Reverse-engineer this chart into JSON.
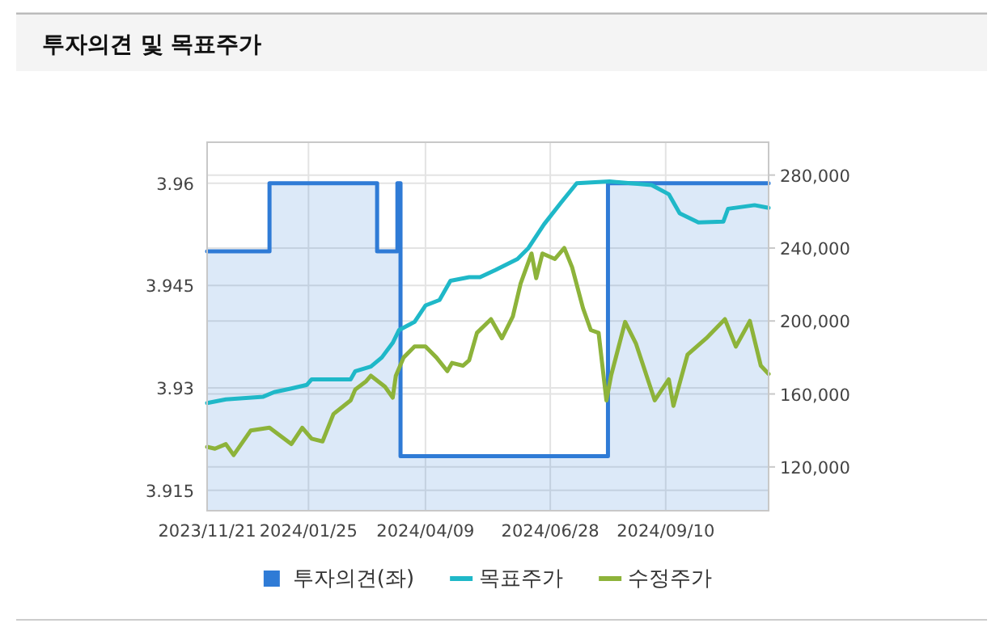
{
  "chart_data": {
    "type": "line",
    "title": "투자의견 및 목표주가",
    "xlim": [
      "2023-11-21",
      "2024-11-15"
    ],
    "xticks": [
      {
        "value": "2023-11-21",
        "label": "2023/11/21"
      },
      {
        "value": "2024-01-25",
        "label": "2024/01/25"
      },
      {
        "value": "2024-04-09",
        "label": "2024/04/09"
      },
      {
        "value": "2024-06-28",
        "label": "2024/06/28"
      },
      {
        "value": "2024-09-10",
        "label": "2024/09/10"
      }
    ],
    "ylim": [
      3.912,
      3.966
    ],
    "yticks": [
      3.915,
      3.93,
      3.945,
      3.96
    ],
    "y2lim": [
      96000,
      298000
    ],
    "y2ticks": [
      {
        "value": 120000,
        "label": "120,000"
      },
      {
        "value": 160000,
        "label": "160,000"
      },
      {
        "value": 200000,
        "label": "200,000"
      },
      {
        "value": 240000,
        "label": "240,000"
      },
      {
        "value": 280000,
        "label": "280,000"
      }
    ],
    "grid": true,
    "legend": "bottom",
    "series": [
      {
        "name": "투자의견(좌)",
        "type": "area",
        "color": "#2f7bd6",
        "x": [
          "2023-11-21",
          "2023-12-31",
          "2023-12-31",
          "2024-03-09",
          "2024-03-09",
          "2024-03-22",
          "2024-03-22",
          "2024-03-24",
          "2024-03-24",
          "2024-08-04",
          "2024-08-04",
          "2024-11-15"
        ],
        "values": [
          3.95,
          3.95,
          3.96,
          3.96,
          3.95,
          3.95,
          3.96,
          3.96,
          3.92,
          3.92,
          3.96,
          3.96
        ]
      },
      {
        "name": "목표주가",
        "type": "line",
        "axis": "y2",
        "color": "#1fb8c8",
        "x": [
          "2023-11-21",
          "2023-12-03",
          "2023-12-27",
          "2024-01-03",
          "2024-01-14",
          "2024-01-24",
          "2024-01-27",
          "2024-02-21",
          "2024-02-24",
          "2024-03-05",
          "2024-03-12",
          "2024-03-19",
          "2024-03-23",
          "2024-04-02",
          "2024-04-09",
          "2024-04-18",
          "2024-04-25",
          "2024-05-07",
          "2024-05-14",
          "2024-05-24",
          "2024-06-07",
          "2024-06-14",
          "2024-06-24",
          "2024-07-05",
          "2024-07-15",
          "2024-08-05",
          "2024-09-01",
          "2024-09-12",
          "2024-09-19",
          "2024-10-01",
          "2024-10-17",
          "2024-10-20",
          "2024-11-06",
          "2024-11-15"
        ],
        "values": [
          155000,
          157000,
          158500,
          161000,
          163000,
          165000,
          168000,
          168000,
          172500,
          175000,
          180000,
          188000,
          195000,
          199500,
          208500,
          211500,
          222000,
          224000,
          224000,
          228000,
          234000,
          240000,
          253000,
          265000,
          275500,
          276500,
          274500,
          269500,
          259000,
          254000,
          254500,
          261500,
          263500,
          262000
        ]
      },
      {
        "name": "수정주가",
        "type": "line",
        "axis": "y2",
        "color": "#8db33a",
        "x": [
          "2023-11-21",
          "2023-11-26",
          "2023-12-03",
          "2023-12-08",
          "2023-12-19",
          "2023-12-31",
          "2024-01-14",
          "2024-01-21",
          "2024-01-27",
          "2024-02-03",
          "2024-02-10",
          "2024-02-21",
          "2024-02-24",
          "2024-03-02",
          "2024-03-05",
          "2024-03-14",
          "2024-03-19",
          "2024-03-21",
          "2024-03-26",
          "2024-04-02",
          "2024-04-09",
          "2024-04-16",
          "2024-04-23",
          "2024-04-26",
          "2024-05-03",
          "2024-05-07",
          "2024-05-12",
          "2024-05-21",
          "2024-05-28",
          "2024-06-04",
          "2024-06-09",
          "2024-06-16",
          "2024-06-19",
          "2024-06-23",
          "2024-07-01",
          "2024-07-07",
          "2024-07-12",
          "2024-07-19",
          "2024-07-24",
          "2024-07-29",
          "2024-08-03",
          "2024-08-06",
          "2024-08-15",
          "2024-08-22",
          "2024-09-03",
          "2024-09-12",
          "2024-09-15",
          "2024-09-24",
          "2024-10-06",
          "2024-10-18",
          "2024-10-25",
          "2024-11-03",
          "2024-11-10",
          "2024-11-15"
        ],
        "values": [
          131000,
          130000,
          132500,
          126500,
          140000,
          141500,
          132500,
          141500,
          135500,
          134000,
          149000,
          156500,
          162500,
          167000,
          170000,
          164000,
          158000,
          170000,
          180000,
          186000,
          186000,
          180000,
          172500,
          177000,
          175500,
          178500,
          193500,
          201000,
          190500,
          202500,
          220500,
          237000,
          223500,
          237000,
          234000,
          240000,
          229500,
          207000,
          195000,
          193500,
          156500,
          170000,
          199500,
          187500,
          156500,
          168000,
          153500,
          181500,
          190500,
          201000,
          186000,
          200000,
          175500,
          171000
        ]
      }
    ]
  }
}
